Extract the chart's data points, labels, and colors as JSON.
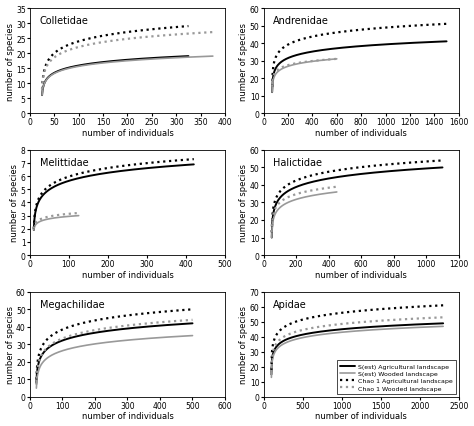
{
  "panels": [
    {
      "title": "Colletidae",
      "xlim": [
        0,
        400
      ],
      "ylim": [
        0,
        35
      ],
      "xticks": [
        0,
        50,
        100,
        150,
        200,
        250,
        300,
        350,
        400
      ],
      "yticks": [
        0,
        5,
        10,
        15,
        20,
        25,
        30,
        35
      ],
      "curves": [
        {
          "x_start": 25,
          "x_end": 325,
          "y_start": 6.0,
          "y_end": 19.0,
          "color": "black",
          "ls": "-",
          "lw": 1.4
        },
        {
          "x_start": 25,
          "x_end": 375,
          "y_start": 6.0,
          "y_end": 19.0,
          "color": "#999999",
          "ls": "-",
          "lw": 1.2
        },
        {
          "x_start": 25,
          "x_end": 325,
          "y_start": 8.0,
          "y_end": 29.0,
          "color": "black",
          "ls": ":",
          "lw": 1.6
        },
        {
          "x_start": 25,
          "x_end": 375,
          "y_start": 8.0,
          "y_end": 27.0,
          "color": "#999999",
          "ls": ":",
          "lw": 1.6
        }
      ]
    },
    {
      "title": "Andrenidae",
      "xlim": [
        0,
        1600
      ],
      "ylim": [
        0,
        60
      ],
      "xticks": [
        0,
        200,
        400,
        600,
        800,
        1000,
        1200,
        1400,
        1600
      ],
      "yticks": [
        0,
        10,
        20,
        30,
        40,
        50,
        60
      ],
      "curves": [
        {
          "x_start": 70,
          "x_end": 1500,
          "y_start": 12.0,
          "y_end": 41.0,
          "color": "black",
          "ls": "-",
          "lw": 1.4
        },
        {
          "x_start": 70,
          "x_end": 600,
          "y_start": 12.0,
          "y_end": 31.0,
          "color": "#999999",
          "ls": "-",
          "lw": 1.2
        },
        {
          "x_start": 70,
          "x_end": 1500,
          "y_start": 15.0,
          "y_end": 51.0,
          "color": "black",
          "ls": ":",
          "lw": 1.6
        },
        {
          "x_start": 70,
          "x_end": 600,
          "y_start": 15.0,
          "y_end": 31.0,
          "color": "#999999",
          "ls": ":",
          "lw": 1.6
        }
      ]
    },
    {
      "title": "Melittidae",
      "xlim": [
        0,
        500
      ],
      "ylim": [
        0,
        8
      ],
      "xticks": [
        0,
        100,
        200,
        300,
        400,
        500
      ],
      "yticks": [
        0,
        1,
        2,
        3,
        4,
        5,
        6,
        7,
        8
      ],
      "curves": [
        {
          "x_start": 10,
          "x_end": 420,
          "y_start": 1.9,
          "y_end": 6.9,
          "color": "black",
          "ls": "-",
          "lw": 1.4
        },
        {
          "x_start": 10,
          "x_end": 125,
          "y_start": 1.9,
          "y_end": 3.0,
          "color": "#999999",
          "ls": "-",
          "lw": 1.2
        },
        {
          "x_start": 10,
          "x_end": 420,
          "y_start": 2.0,
          "y_end": 7.3,
          "color": "black",
          "ls": ":",
          "lw": 1.6
        },
        {
          "x_start": 10,
          "x_end": 125,
          "y_start": 2.0,
          "y_end": 3.2,
          "color": "#999999",
          "ls": ":",
          "lw": 1.6
        }
      ]
    },
    {
      "title": "Halictidae",
      "xlim": [
        0,
        1200
      ],
      "ylim": [
        0,
        60
      ],
      "xticks": [
        0,
        200,
        400,
        600,
        800,
        1000,
        1200
      ],
      "yticks": [
        0,
        10,
        20,
        30,
        40,
        50,
        60
      ],
      "curves": [
        {
          "x_start": 50,
          "x_end": 1100,
          "y_start": 10.0,
          "y_end": 50.0,
          "color": "black",
          "ls": "-",
          "lw": 1.4
        },
        {
          "x_start": 50,
          "x_end": 450,
          "y_start": 10.0,
          "y_end": 36.0,
          "color": "#999999",
          "ls": "-",
          "lw": 1.2
        },
        {
          "x_start": 50,
          "x_end": 1100,
          "y_start": 13.0,
          "y_end": 54.0,
          "color": "black",
          "ls": ":",
          "lw": 1.6
        },
        {
          "x_start": 50,
          "x_end": 450,
          "y_start": 13.0,
          "y_end": 39.0,
          "color": "#999999",
          "ls": ":",
          "lw": 1.6
        }
      ]
    },
    {
      "title": "Megachilidae",
      "xlim": [
        0,
        600
      ],
      "ylim": [
        0,
        60
      ],
      "xticks": [
        0,
        100,
        200,
        300,
        400,
        500,
        600
      ],
      "yticks": [
        0,
        10,
        20,
        30,
        40,
        50,
        60
      ],
      "curves": [
        {
          "x_start": 20,
          "x_end": 500,
          "y_start": 8.0,
          "y_end": 42.0,
          "color": "black",
          "ls": "-",
          "lw": 1.4
        },
        {
          "x_start": 20,
          "x_end": 500,
          "y_start": 5.0,
          "y_end": 35.0,
          "color": "#999999",
          "ls": "-",
          "lw": 1.2
        },
        {
          "x_start": 20,
          "x_end": 500,
          "y_start": 10.0,
          "y_end": 50.0,
          "color": "black",
          "ls": ":",
          "lw": 1.6
        },
        {
          "x_start": 20,
          "x_end": 500,
          "y_start": 7.0,
          "y_end": 44.0,
          "color": "#999999",
          "ls": ":",
          "lw": 1.6
        }
      ]
    },
    {
      "title": "Apidae",
      "xlim": [
        0,
        2500
      ],
      "ylim": [
        0,
        70
      ],
      "xticks": [
        0,
        500,
        1000,
        1500,
        2000,
        2500
      ],
      "yticks": [
        0,
        10,
        20,
        30,
        40,
        50,
        60,
        70
      ],
      "curves": [
        {
          "x_start": 100,
          "x_end": 2300,
          "y_start": 15.0,
          "y_end": 49.0,
          "color": "black",
          "ls": "-",
          "lw": 1.4
        },
        {
          "x_start": 100,
          "x_end": 2300,
          "y_start": 13.0,
          "y_end": 47.0,
          "color": "#999999",
          "ls": "-",
          "lw": 1.2
        },
        {
          "x_start": 100,
          "x_end": 2300,
          "y_start": 18.0,
          "y_end": 61.0,
          "color": "black",
          "ls": ":",
          "lw": 1.6
        },
        {
          "x_start": 100,
          "x_end": 2300,
          "y_start": 15.0,
          "y_end": 53.0,
          "color": "#999999",
          "ls": ":",
          "lw": 1.6
        }
      ]
    }
  ],
  "legend_labels": [
    "S(est) Agricultural landscape",
    "S(est) Wooded landscape",
    "Chao 1 Agricultural landscape",
    "Chao 1 Wooded landscape"
  ],
  "xlabel": "number of individuals",
  "ylabel": "number of species",
  "background_color": "#ffffff",
  "title_fontsize": 7,
  "axis_fontsize": 6,
  "tick_fontsize": 5.5
}
